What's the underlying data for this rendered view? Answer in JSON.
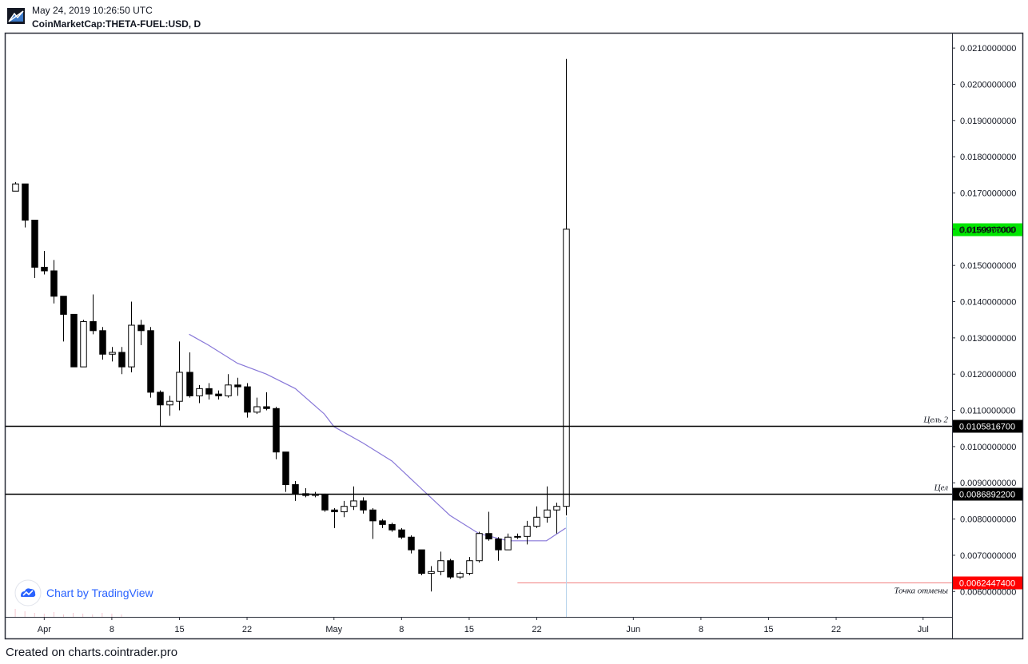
{
  "header": {
    "timestamp": "May 24, 2019 10:26:50 UTC",
    "symbol": "CoinMarketCap:THETA-FUEL:USD, D"
  },
  "footer": {
    "text": "Created on charts.cointrader.pro"
  },
  "watermark": {
    "text": "Chart by TradingView",
    "icon": "tradingview-logo-icon"
  },
  "colors": {
    "up_body": "#ffffff",
    "down_body": "#000000",
    "ma_line": "#8878d8",
    "last_price_bg": "#00e600",
    "stop_bg": "#ff0000",
    "level_bg": "#000000",
    "stop_line": "#f08080"
  },
  "chart_data": {
    "type": "candlestick",
    "title": "",
    "ylim": [
      0.0053,
      0.0214
    ],
    "y_ticks": [
      "0.0210000000",
      "0.0200000000",
      "0.0190000000",
      "0.0180000000",
      "0.0170000000",
      "0.0160000000",
      "0.0150000000",
      "0.0140000000",
      "0.0130000000",
      "0.0120000000",
      "0.0110000000",
      "0.0100000000",
      "0.0090000000",
      "0.0080000000",
      "0.0070000000",
      "0.0060000000"
    ],
    "x_ticks": [
      {
        "label": "Apr",
        "date": "2019-04-01"
      },
      {
        "label": "8",
        "date": "2019-04-08"
      },
      {
        "label": "15",
        "date": "2019-04-15"
      },
      {
        "label": "22",
        "date": "2019-04-22"
      },
      {
        "label": "May",
        "date": "2019-05-01"
      },
      {
        "label": "8",
        "date": "2019-05-08"
      },
      {
        "label": "15",
        "date": "2019-05-15"
      },
      {
        "label": "22",
        "date": "2019-05-22"
      },
      {
        "label": "Jun",
        "date": "2019-06-01"
      },
      {
        "label": "8",
        "date": "2019-06-08"
      },
      {
        "label": "15",
        "date": "2019-06-15"
      },
      {
        "label": "22",
        "date": "2019-06-22"
      },
      {
        "label": "Jul",
        "date": "2019-07-01"
      }
    ],
    "x_range": [
      "2019-03-28",
      "2019-07-04"
    ],
    "candles": [
      {
        "date": "2019-03-29",
        "o": 0.01705,
        "h": 0.0173,
        "l": 0.01705,
        "c": 0.01725
      },
      {
        "date": "2019-03-30",
        "o": 0.01725,
        "h": 0.01725,
        "l": 0.01605,
        "c": 0.01625
      },
      {
        "date": "2019-03-31",
        "o": 0.01625,
        "h": 0.01625,
        "l": 0.01465,
        "c": 0.01495
      },
      {
        "date": "2019-04-01",
        "o": 0.01495,
        "h": 0.0154,
        "l": 0.01475,
        "c": 0.01485
      },
      {
        "date": "2019-04-02",
        "o": 0.01485,
        "h": 0.01515,
        "l": 0.01395,
        "c": 0.01415
      },
      {
        "date": "2019-04-03",
        "o": 0.01415,
        "h": 0.01415,
        "l": 0.0129,
        "c": 0.01365
      },
      {
        "date": "2019-04-04",
        "o": 0.01365,
        "h": 0.01365,
        "l": 0.0122,
        "c": 0.0122
      },
      {
        "date": "2019-04-05",
        "o": 0.0122,
        "h": 0.0135,
        "l": 0.0122,
        "c": 0.01345
      },
      {
        "date": "2019-04-06",
        "o": 0.01345,
        "h": 0.0142,
        "l": 0.0131,
        "c": 0.0132
      },
      {
        "date": "2019-04-07",
        "o": 0.0132,
        "h": 0.0133,
        "l": 0.0124,
        "c": 0.01255
      },
      {
        "date": "2019-04-08",
        "o": 0.01255,
        "h": 0.01275,
        "l": 0.01235,
        "c": 0.0126
      },
      {
        "date": "2019-04-09",
        "o": 0.0126,
        "h": 0.01275,
        "l": 0.012,
        "c": 0.0122
      },
      {
        "date": "2019-04-10",
        "o": 0.0122,
        "h": 0.014,
        "l": 0.01205,
        "c": 0.01335
      },
      {
        "date": "2019-04-11",
        "o": 0.01335,
        "h": 0.0135,
        "l": 0.0128,
        "c": 0.0132
      },
      {
        "date": "2019-04-12",
        "o": 0.0132,
        "h": 0.0133,
        "l": 0.01135,
        "c": 0.0115
      },
      {
        "date": "2019-04-13",
        "o": 0.0115,
        "h": 0.01155,
        "l": 0.01055,
        "c": 0.01115
      },
      {
        "date": "2019-04-14",
        "o": 0.01115,
        "h": 0.0114,
        "l": 0.01085,
        "c": 0.01125
      },
      {
        "date": "2019-04-15",
        "o": 0.01125,
        "h": 0.0129,
        "l": 0.011,
        "c": 0.01205
      },
      {
        "date": "2019-04-16",
        "o": 0.01205,
        "h": 0.0126,
        "l": 0.01135,
        "c": 0.0114
      },
      {
        "date": "2019-04-17",
        "o": 0.0114,
        "h": 0.0117,
        "l": 0.0112,
        "c": 0.0116
      },
      {
        "date": "2019-04-18",
        "o": 0.0116,
        "h": 0.01175,
        "l": 0.0113,
        "c": 0.01145
      },
      {
        "date": "2019-04-19",
        "o": 0.01145,
        "h": 0.01155,
        "l": 0.0113,
        "c": 0.0114
      },
      {
        "date": "2019-04-20",
        "o": 0.0114,
        "h": 0.012,
        "l": 0.01135,
        "c": 0.0117
      },
      {
        "date": "2019-04-21",
        "o": 0.0117,
        "h": 0.0119,
        "l": 0.0114,
        "c": 0.01165
      },
      {
        "date": "2019-04-22",
        "o": 0.01165,
        "h": 0.01175,
        "l": 0.0108,
        "c": 0.01095
      },
      {
        "date": "2019-04-23",
        "o": 0.01095,
        "h": 0.01135,
        "l": 0.0109,
        "c": 0.0111
      },
      {
        "date": "2019-04-24",
        "o": 0.0111,
        "h": 0.0115,
        "l": 0.011,
        "c": 0.01105
      },
      {
        "date": "2019-04-25",
        "o": 0.01105,
        "h": 0.0111,
        "l": 0.00965,
        "c": 0.00985
      },
      {
        "date": "2019-04-26",
        "o": 0.00985,
        "h": 0.00985,
        "l": 0.00875,
        "c": 0.00895
      },
      {
        "date": "2019-04-27",
        "o": 0.00895,
        "h": 0.00905,
        "l": 0.0085,
        "c": 0.0087
      },
      {
        "date": "2019-04-28",
        "o": 0.0087,
        "h": 0.00885,
        "l": 0.0086,
        "c": 0.00865
      },
      {
        "date": "2019-04-29",
        "o": 0.00865,
        "h": 0.00875,
        "l": 0.0086,
        "c": 0.00868
      },
      {
        "date": "2019-04-30",
        "o": 0.00868,
        "h": 0.0087,
        "l": 0.0082,
        "c": 0.00825
      },
      {
        "date": "2019-05-01",
        "o": 0.00825,
        "h": 0.0083,
        "l": 0.00775,
        "c": 0.0082
      },
      {
        "date": "2019-05-02",
        "o": 0.0082,
        "h": 0.0085,
        "l": 0.00805,
        "c": 0.00835
      },
      {
        "date": "2019-05-03",
        "o": 0.00835,
        "h": 0.0089,
        "l": 0.00825,
        "c": 0.0085
      },
      {
        "date": "2019-05-04",
        "o": 0.0085,
        "h": 0.0086,
        "l": 0.00815,
        "c": 0.00825
      },
      {
        "date": "2019-05-05",
        "o": 0.00825,
        "h": 0.0083,
        "l": 0.00745,
        "c": 0.00795
      },
      {
        "date": "2019-05-06",
        "o": 0.00795,
        "h": 0.008,
        "l": 0.00775,
        "c": 0.00785
      },
      {
        "date": "2019-05-07",
        "o": 0.00785,
        "h": 0.0079,
        "l": 0.00765,
        "c": 0.0077
      },
      {
        "date": "2019-05-08",
        "o": 0.0077,
        "h": 0.00775,
        "l": 0.00745,
        "c": 0.0075
      },
      {
        "date": "2019-05-09",
        "o": 0.0075,
        "h": 0.00755,
        "l": 0.00705,
        "c": 0.00715
      },
      {
        "date": "2019-05-10",
        "o": 0.00715,
        "h": 0.00715,
        "l": 0.00645,
        "c": 0.0065
      },
      {
        "date": "2019-05-11",
        "o": 0.0065,
        "h": 0.0067,
        "l": 0.006,
        "c": 0.00655
      },
      {
        "date": "2019-05-12",
        "o": 0.00655,
        "h": 0.0071,
        "l": 0.00645,
        "c": 0.00685
      },
      {
        "date": "2019-05-13",
        "o": 0.00685,
        "h": 0.0069,
        "l": 0.00635,
        "c": 0.0064
      },
      {
        "date": "2019-05-14",
        "o": 0.0064,
        "h": 0.00655,
        "l": 0.00635,
        "c": 0.0065
      },
      {
        "date": "2019-05-15",
        "o": 0.0065,
        "h": 0.00695,
        "l": 0.00645,
        "c": 0.00685
      },
      {
        "date": "2019-05-16",
        "o": 0.00685,
        "h": 0.00765,
        "l": 0.0068,
        "c": 0.0076
      },
      {
        "date": "2019-05-17",
        "o": 0.0076,
        "h": 0.0082,
        "l": 0.0074,
        "c": 0.00745
      },
      {
        "date": "2019-05-18",
        "o": 0.00745,
        "h": 0.0075,
        "l": 0.00685,
        "c": 0.00715
      },
      {
        "date": "2019-05-19",
        "o": 0.00715,
        "h": 0.0076,
        "l": 0.00715,
        "c": 0.0075
      },
      {
        "date": "2019-05-20",
        "o": 0.0075,
        "h": 0.0076,
        "l": 0.00745,
        "c": 0.00752
      },
      {
        "date": "2019-05-21",
        "o": 0.00752,
        "h": 0.00795,
        "l": 0.0073,
        "c": 0.0078
      },
      {
        "date": "2019-05-22",
        "o": 0.0078,
        "h": 0.00835,
        "l": 0.00775,
        "c": 0.00805
      },
      {
        "date": "2019-05-23",
        "o": 0.00805,
        "h": 0.0089,
        "l": 0.0079,
        "c": 0.00825
      },
      {
        "date": "2019-05-24",
        "o": 0.00825,
        "h": 0.00845,
        "l": 0.0076,
        "c": 0.00835
      },
      {
        "date": "2019-05-25",
        "o": 0.00835,
        "h": 0.0207,
        "l": 0.0081,
        "c": 0.016
      }
    ],
    "moving_average": [
      {
        "date": "2019-04-16",
        "v": 0.0131
      },
      {
        "date": "2019-04-18",
        "v": 0.0128
      },
      {
        "date": "2019-04-21",
        "v": 0.0123
      },
      {
        "date": "2019-04-24",
        "v": 0.012
      },
      {
        "date": "2019-04-27",
        "v": 0.0116
      },
      {
        "date": "2019-04-30",
        "v": 0.0109
      },
      {
        "date": "2019-05-01",
        "v": 0.01055
      },
      {
        "date": "2019-05-04",
        "v": 0.0101
      },
      {
        "date": "2019-05-07",
        "v": 0.0096
      },
      {
        "date": "2019-05-10",
        "v": 0.00885
      },
      {
        "date": "2019-05-13",
        "v": 0.0081
      },
      {
        "date": "2019-05-16",
        "v": 0.0076
      },
      {
        "date": "2019-05-19",
        "v": 0.0074
      },
      {
        "date": "2019-05-21",
        "v": 0.0074
      },
      {
        "date": "2019-05-23",
        "v": 0.0074
      },
      {
        "date": "2019-05-25",
        "v": 0.00775
      }
    ],
    "horizontal_levels": [
      {
        "name": "target-2",
        "value": 0.01058167,
        "price_label": "0.0105816700",
        "line_label": "Цель 2",
        "start_date": "2019-03-28",
        "style": "solid"
      },
      {
        "name": "target-1",
        "value": 0.00868922,
        "price_label": "0.0086892200",
        "line_label": "Цел",
        "start_date": "2019-03-28",
        "style": "solid"
      },
      {
        "name": "stop",
        "value": 0.00624474,
        "price_label": "0.0062447400",
        "line_label": "Точка отмены",
        "start_date": "2019-05-20",
        "style": "thin-red"
      }
    ],
    "last_price": {
      "value": 0.0159977,
      "label": "0.0159977000"
    },
    "volume_hint": [
      1,
      0.7,
      0.5,
      0.4,
      0.6,
      0.3,
      0.5,
      0.4,
      0.3,
      0.5,
      0.4,
      0.3
    ]
  }
}
